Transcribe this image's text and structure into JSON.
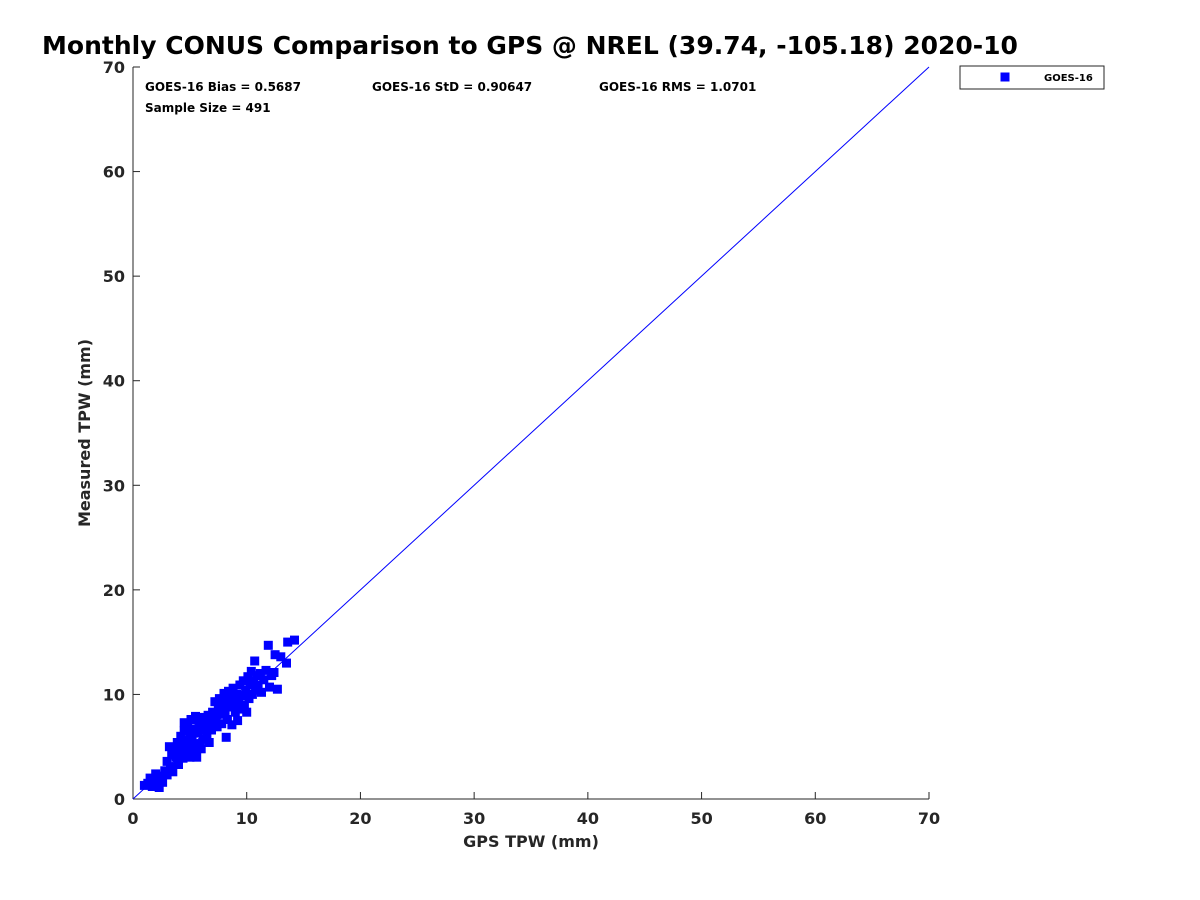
{
  "chart_data": {
    "type": "scatter",
    "title": "Monthly CONUS Comparison to GPS @ NREL (39.74, -105.18) 2020-10",
    "xlabel": "GPS TPW (mm)",
    "ylabel": "Measured TPW (mm)",
    "xlim": [
      0,
      70
    ],
    "ylim": [
      0,
      70
    ],
    "xticks": [
      "0",
      "10",
      "20",
      "30",
      "40",
      "50",
      "60",
      "70"
    ],
    "yticks": [
      "0",
      "10",
      "20",
      "30",
      "40",
      "50",
      "60",
      "70"
    ],
    "grid": false,
    "legend": {
      "placement": "outside-top-right",
      "entries": [
        "GOES-16"
      ]
    },
    "stats": {
      "bias": "GOES-16 Bias = 0.5687",
      "std": "GOES-16 StD = 0.90647",
      "rms": "GOES-16 RMS = 1.0701",
      "sample": "Sample Size = 491"
    },
    "reference_line": {
      "x": [
        0,
        70
      ],
      "y": [
        0,
        70
      ],
      "color": "#0000ff"
    },
    "series": [
      {
        "name": "GOES-16",
        "color": "#0000ff",
        "marker": "square",
        "points": [
          [
            1.0,
            1.3
          ],
          [
            1.3,
            1.5
          ],
          [
            1.5,
            2.0
          ],
          [
            1.7,
            1.2
          ],
          [
            1.9,
            1.6
          ],
          [
            2.0,
            2.4
          ],
          [
            2.2,
            1.9
          ],
          [
            2.3,
            1.1
          ],
          [
            2.5,
            2.2
          ],
          [
            2.6,
            1.6
          ],
          [
            2.8,
            2.7
          ],
          [
            3.0,
            2.3
          ],
          [
            3.0,
            3.6
          ],
          [
            3.2,
            5.0
          ],
          [
            3.3,
            3.1
          ],
          [
            3.4,
            4.2
          ],
          [
            3.5,
            2.6
          ],
          [
            3.6,
            4.8
          ],
          [
            3.8,
            4.0
          ],
          [
            3.9,
            5.4
          ],
          [
            4.0,
            3.3
          ],
          [
            4.1,
            4.5
          ],
          [
            4.2,
            6.0
          ],
          [
            4.3,
            5.1
          ],
          [
            4.4,
            3.9
          ],
          [
            4.5,
            6.5
          ],
          [
            4.5,
            7.3
          ],
          [
            4.6,
            5.6
          ],
          [
            4.7,
            4.4
          ],
          [
            4.8,
            6.9
          ],
          [
            4.9,
            5.2
          ],
          [
            5.0,
            4.0
          ],
          [
            5.0,
            6.1
          ],
          [
            5.1,
            7.6
          ],
          [
            5.2,
            5.8
          ],
          [
            5.3,
            4.6
          ],
          [
            5.4,
            6.7
          ],
          [
            5.5,
            5.3
          ],
          [
            5.5,
            7.9
          ],
          [
            5.6,
            4.0
          ],
          [
            5.7,
            6.3
          ],
          [
            5.8,
            7.2
          ],
          [
            5.9,
            5.0
          ],
          [
            6.0,
            6.6
          ],
          [
            6.0,
            4.8
          ],
          [
            6.1,
            7.8
          ],
          [
            6.2,
            5.7
          ],
          [
            6.3,
            6.9
          ],
          [
            6.4,
            7.5
          ],
          [
            6.5,
            6.1
          ],
          [
            6.6,
            8.0
          ],
          [
            6.7,
            5.4
          ],
          [
            6.8,
            7.3
          ],
          [
            6.9,
            6.6
          ],
          [
            7.0,
            8.3
          ],
          [
            7.1,
            7.0
          ],
          [
            7.2,
            9.3
          ],
          [
            7.3,
            7.8
          ],
          [
            7.4,
            6.9
          ],
          [
            7.5,
            8.6
          ],
          [
            7.6,
            9.6
          ],
          [
            7.7,
            8.1
          ],
          [
            7.8,
            7.2
          ],
          [
            7.9,
            9.0
          ],
          [
            8.0,
            10.1
          ],
          [
            8.1,
            8.4
          ],
          [
            8.2,
            5.9
          ],
          [
            8.2,
            9.5
          ],
          [
            8.3,
            7.6
          ],
          [
            8.4,
            10.3
          ],
          [
            8.5,
            8.8
          ],
          [
            8.6,
            9.8
          ],
          [
            8.7,
            7.1
          ],
          [
            8.8,
            10.6
          ],
          [
            8.9,
            9.1
          ],
          [
            9.0,
            8.3
          ],
          [
            9.1,
            10.0
          ],
          [
            9.2,
            7.5
          ],
          [
            9.3,
            9.4
          ],
          [
            9.4,
            10.9
          ],
          [
            9.5,
            8.6
          ],
          [
            9.6,
            9.9
          ],
          [
            9.7,
            11.3
          ],
          [
            9.8,
            9.0
          ],
          [
            9.9,
            10.4
          ],
          [
            10.0,
            8.3
          ],
          [
            10.1,
            11.7
          ],
          [
            10.2,
            9.6
          ],
          [
            10.3,
            10.9
          ],
          [
            10.4,
            12.2
          ],
          [
            10.5,
            10.0
          ],
          [
            10.6,
            11.3
          ],
          [
            10.7,
            13.2
          ],
          [
            10.8,
            10.4
          ],
          [
            10.9,
            11.8
          ],
          [
            11.0,
            10.9
          ],
          [
            11.2,
            12.0
          ],
          [
            11.3,
            10.2
          ],
          [
            11.5,
            11.4
          ],
          [
            11.7,
            12.3
          ],
          [
            11.9,
            14.7
          ],
          [
            12.0,
            10.7
          ],
          [
            12.2,
            11.8
          ],
          [
            12.4,
            12.1
          ],
          [
            12.5,
            13.8
          ],
          [
            12.7,
            10.5
          ],
          [
            13.0,
            13.6
          ],
          [
            13.5,
            13.0
          ],
          [
            13.6,
            15.0
          ],
          [
            14.2,
            15.2
          ]
        ]
      }
    ]
  }
}
